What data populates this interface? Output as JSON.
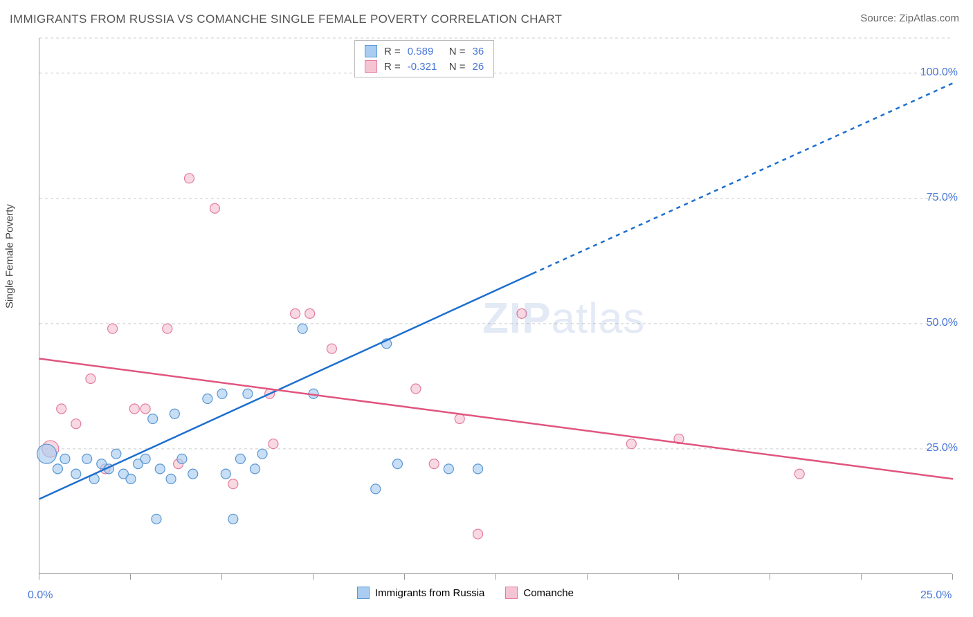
{
  "title": "IMMIGRANTS FROM RUSSIA VS COMANCHE SINGLE FEMALE POVERTY CORRELATION CHART",
  "source_label": "Source:",
  "source_value": "ZipAtlas.com",
  "y_axis_label": "Single Female Poverty",
  "watermark": {
    "bold": "ZIP",
    "rest": "atlas"
  },
  "chart": {
    "type": "scatter",
    "xlim": [
      0,
      25
    ],
    "ylim": [
      0,
      107
    ],
    "x_ticks": [
      0,
      2.5,
      5,
      7.5,
      10,
      12.5,
      15,
      17.5,
      20,
      22.5,
      25
    ],
    "x_tick_labels": {
      "0": "0.0%",
      "25": "25.0%"
    },
    "y_ticks_labeled": [
      {
        "v": 25,
        "label": "25.0%"
      },
      {
        "v": 50,
        "label": "50.0%"
      },
      {
        "v": 75,
        "label": "75.0%"
      },
      {
        "v": 100,
        "label": "100.0%"
      }
    ],
    "grid_y": [
      25,
      50,
      75,
      100,
      107
    ],
    "background_color": "#ffffff",
    "grid_color": "#cccccc",
    "axis_color": "#999999",
    "series": [
      {
        "name": "Immigrants from Russia",
        "color_fill": "#a9cdf0",
        "color_stroke": "#5b97d3",
        "trend_color": "#1d6fcf",
        "R": "0.589",
        "N": "36",
        "trend": {
          "x1": 0,
          "y1": 15,
          "x2_solid": 13.5,
          "y2_solid": 60,
          "x2": 25,
          "y2": 98
        },
        "points": [
          {
            "x": 0.2,
            "y": 24,
            "r": 14
          },
          {
            "x": 0.5,
            "y": 21,
            "r": 7
          },
          {
            "x": 0.7,
            "y": 23,
            "r": 7
          },
          {
            "x": 1.0,
            "y": 20,
            "r": 7
          },
          {
            "x": 1.3,
            "y": 23,
            "r": 7
          },
          {
            "x": 1.5,
            "y": 19,
            "r": 7
          },
          {
            "x": 1.7,
            "y": 22,
            "r": 7
          },
          {
            "x": 1.9,
            "y": 21,
            "r": 7
          },
          {
            "x": 2.1,
            "y": 24,
            "r": 7
          },
          {
            "x": 2.3,
            "y": 20,
            "r": 7
          },
          {
            "x": 2.5,
            "y": 19,
            "r": 7
          },
          {
            "x": 2.7,
            "y": 22,
            "r": 7
          },
          {
            "x": 2.9,
            "y": 23,
            "r": 7
          },
          {
            "x": 3.1,
            "y": 31,
            "r": 7
          },
          {
            "x": 3.3,
            "y": 21,
            "r": 7
          },
          {
            "x": 3.6,
            "y": 19,
            "r": 7
          },
          {
            "x": 3.2,
            "y": 11,
            "r": 7
          },
          {
            "x": 3.7,
            "y": 32,
            "r": 7
          },
          {
            "x": 3.9,
            "y": 23,
            "r": 7
          },
          {
            "x": 4.2,
            "y": 20,
            "r": 7
          },
          {
            "x": 4.6,
            "y": 35,
            "r": 7
          },
          {
            "x": 5.0,
            "y": 36,
            "r": 7
          },
          {
            "x": 5.1,
            "y": 20,
            "r": 7
          },
          {
            "x": 5.3,
            "y": 11,
            "r": 7
          },
          {
            "x": 5.5,
            "y": 23,
            "r": 7
          },
          {
            "x": 5.9,
            "y": 21,
            "r": 7
          },
          {
            "x": 5.7,
            "y": 36,
            "r": 7
          },
          {
            "x": 6.1,
            "y": 24,
            "r": 7
          },
          {
            "x": 7.2,
            "y": 49,
            "r": 7
          },
          {
            "x": 7.5,
            "y": 36,
            "r": 7
          },
          {
            "x": 9.5,
            "y": 46,
            "r": 7
          },
          {
            "x": 9.2,
            "y": 17,
            "r": 7
          },
          {
            "x": 9.8,
            "y": 22,
            "r": 7
          },
          {
            "x": 11.2,
            "y": 21,
            "r": 7
          },
          {
            "x": 12.0,
            "y": 21,
            "r": 7
          }
        ]
      },
      {
        "name": "Comanche",
        "color_fill": "#f5c4d2",
        "color_stroke": "#e37ca0",
        "trend_color": "#e0557f",
        "R": "-0.321",
        "N": "26",
        "trend": {
          "x1": 0,
          "y1": 43,
          "x2_solid": 25,
          "y2_solid": 19,
          "x2": 25,
          "y2": 19
        },
        "points": [
          {
            "x": 0.3,
            "y": 25,
            "r": 12
          },
          {
            "x": 0.6,
            "y": 33,
            "r": 7
          },
          {
            "x": 1.0,
            "y": 30,
            "r": 7
          },
          {
            "x": 1.4,
            "y": 39,
            "r": 7
          },
          {
            "x": 1.8,
            "y": 21,
            "r": 7
          },
          {
            "x": 2.0,
            "y": 49,
            "r": 7
          },
          {
            "x": 2.6,
            "y": 33,
            "r": 7
          },
          {
            "x": 2.9,
            "y": 33,
            "r": 7
          },
          {
            "x": 3.5,
            "y": 49,
            "r": 7
          },
          {
            "x": 3.8,
            "y": 22,
            "r": 7
          },
          {
            "x": 4.1,
            "y": 79,
            "r": 7
          },
          {
            "x": 4.8,
            "y": 73,
            "r": 7
          },
          {
            "x": 5.3,
            "y": 18,
            "r": 7
          },
          {
            "x": 6.3,
            "y": 36,
            "r": 7
          },
          {
            "x": 6.4,
            "y": 26,
            "r": 7
          },
          {
            "x": 7.0,
            "y": 52,
            "r": 7
          },
          {
            "x": 7.4,
            "y": 52,
            "r": 7
          },
          {
            "x": 8.0,
            "y": 45,
            "r": 7
          },
          {
            "x": 10.3,
            "y": 37,
            "r": 7
          },
          {
            "x": 10.8,
            "y": 22,
            "r": 7
          },
          {
            "x": 11.5,
            "y": 31,
            "r": 7
          },
          {
            "x": 12.0,
            "y": 8,
            "r": 7
          },
          {
            "x": 13.2,
            "y": 52,
            "r": 7
          },
          {
            "x": 16.2,
            "y": 26,
            "r": 7
          },
          {
            "x": 17.5,
            "y": 27,
            "r": 7
          },
          {
            "x": 20.8,
            "y": 20,
            "r": 7
          }
        ]
      }
    ]
  },
  "stats_legend": {
    "R_label": "R =",
    "N_label": "N ="
  },
  "bottom_legend_items": [
    "Immigrants from Russia",
    "Comanche"
  ]
}
